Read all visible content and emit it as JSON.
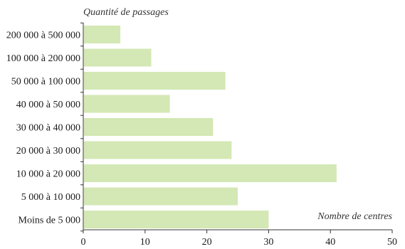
{
  "chart_data": {
    "type": "bar",
    "orientation": "horizontal",
    "title": "",
    "ylabel": "Quantité de passages",
    "xlabel": "Nombre de centres",
    "categories": [
      "200 000 à 500 000",
      "100 000 à 200 000",
      "50 000 à 100 000",
      "40 000 à 50 000",
      "30 000 à 40 000",
      "20 000 à 30 000",
      "10 000 à 20 000",
      "5 000 à 10 000",
      "Moins de 5 000"
    ],
    "values": [
      6,
      11,
      23,
      14,
      21,
      24,
      41,
      25,
      30
    ],
    "xlim": [
      0,
      50
    ],
    "xticks": [
      "0",
      "10",
      "20",
      "30",
      "40",
      "50"
    ],
    "grid": false,
    "bar_color": "#d3e8b4"
  }
}
